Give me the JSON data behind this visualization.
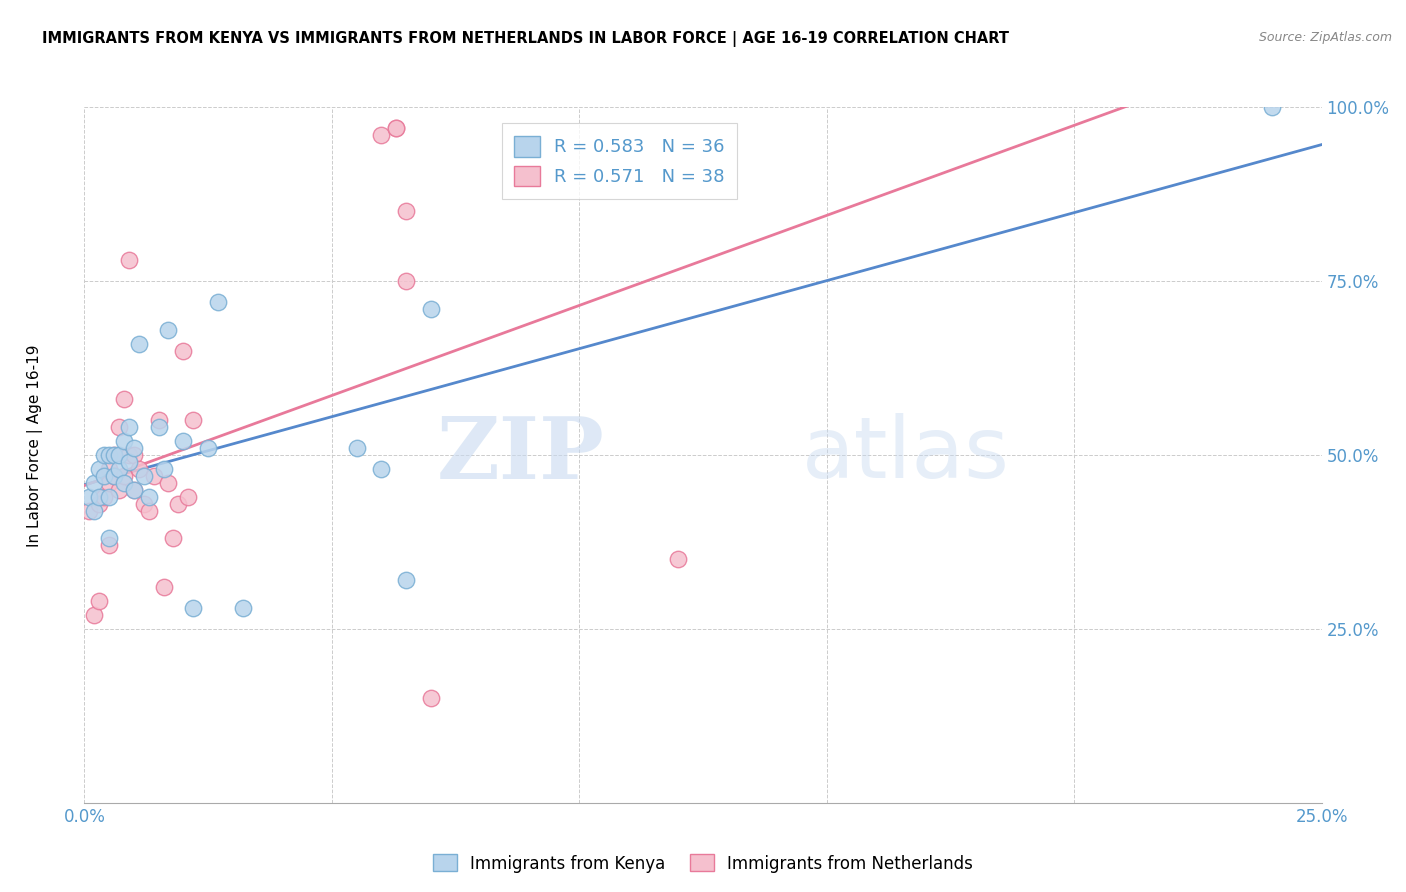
{
  "title": "IMMIGRANTS FROM KENYA VS IMMIGRANTS FROM NETHERLANDS IN LABOR FORCE | AGE 16-19 CORRELATION CHART",
  "source": "Source: ZipAtlas.com",
  "ylabel_label": "In Labor Force | Age 16-19",
  "x_min": 0.0,
  "x_max": 0.25,
  "y_min": 0.0,
  "y_max": 1.0,
  "x_ticks": [
    0.0,
    0.05,
    0.1,
    0.15,
    0.2,
    0.25
  ],
  "y_ticks": [
    0.0,
    0.25,
    0.5,
    0.75,
    1.0
  ],
  "kenya_color": "#b8d4ec",
  "kenya_edge_color": "#7aafd4",
  "netherlands_color": "#f5c0ce",
  "netherlands_edge_color": "#e87a9a",
  "kenya_R": 0.583,
  "kenya_N": 36,
  "netherlands_R": 0.571,
  "netherlands_N": 38,
  "kenya_line_color": "#5588cc",
  "netherlands_line_color": "#e8799a",
  "watermark_zip": "ZIP",
  "watermark_atlas": "atlas",
  "kenya_x": [
    0.001,
    0.002,
    0.002,
    0.003,
    0.003,
    0.004,
    0.004,
    0.005,
    0.005,
    0.005,
    0.006,
    0.006,
    0.007,
    0.007,
    0.008,
    0.008,
    0.009,
    0.009,
    0.01,
    0.01,
    0.011,
    0.012,
    0.013,
    0.015,
    0.016,
    0.017,
    0.02,
    0.022,
    0.025,
    0.027,
    0.032,
    0.055,
    0.06,
    0.065,
    0.07,
    0.24
  ],
  "kenya_y": [
    0.44,
    0.42,
    0.46,
    0.48,
    0.44,
    0.5,
    0.47,
    0.5,
    0.44,
    0.38,
    0.5,
    0.47,
    0.48,
    0.5,
    0.52,
    0.46,
    0.54,
    0.49,
    0.51,
    0.45,
    0.66,
    0.47,
    0.44,
    0.54,
    0.48,
    0.68,
    0.52,
    0.28,
    0.51,
    0.72,
    0.28,
    0.51,
    0.48,
    0.32,
    0.71,
    1.0
  ],
  "netherlands_x": [
    0.001,
    0.002,
    0.003,
    0.003,
    0.004,
    0.004,
    0.005,
    0.005,
    0.005,
    0.006,
    0.006,
    0.007,
    0.007,
    0.008,
    0.008,
    0.009,
    0.009,
    0.01,
    0.01,
    0.011,
    0.012,
    0.013,
    0.014,
    0.015,
    0.016,
    0.017,
    0.018,
    0.019,
    0.02,
    0.021,
    0.022,
    0.06,
    0.063,
    0.063,
    0.065,
    0.065,
    0.07,
    0.12
  ],
  "netherlands_y": [
    0.42,
    0.27,
    0.43,
    0.29,
    0.47,
    0.44,
    0.48,
    0.46,
    0.37,
    0.5,
    0.47,
    0.45,
    0.54,
    0.47,
    0.58,
    0.78,
    0.5,
    0.5,
    0.45,
    0.48,
    0.43,
    0.42,
    0.47,
    0.55,
    0.31,
    0.46,
    0.38,
    0.43,
    0.65,
    0.44,
    0.55,
    0.96,
    0.97,
    0.97,
    0.85,
    0.75,
    0.15,
    0.35
  ]
}
